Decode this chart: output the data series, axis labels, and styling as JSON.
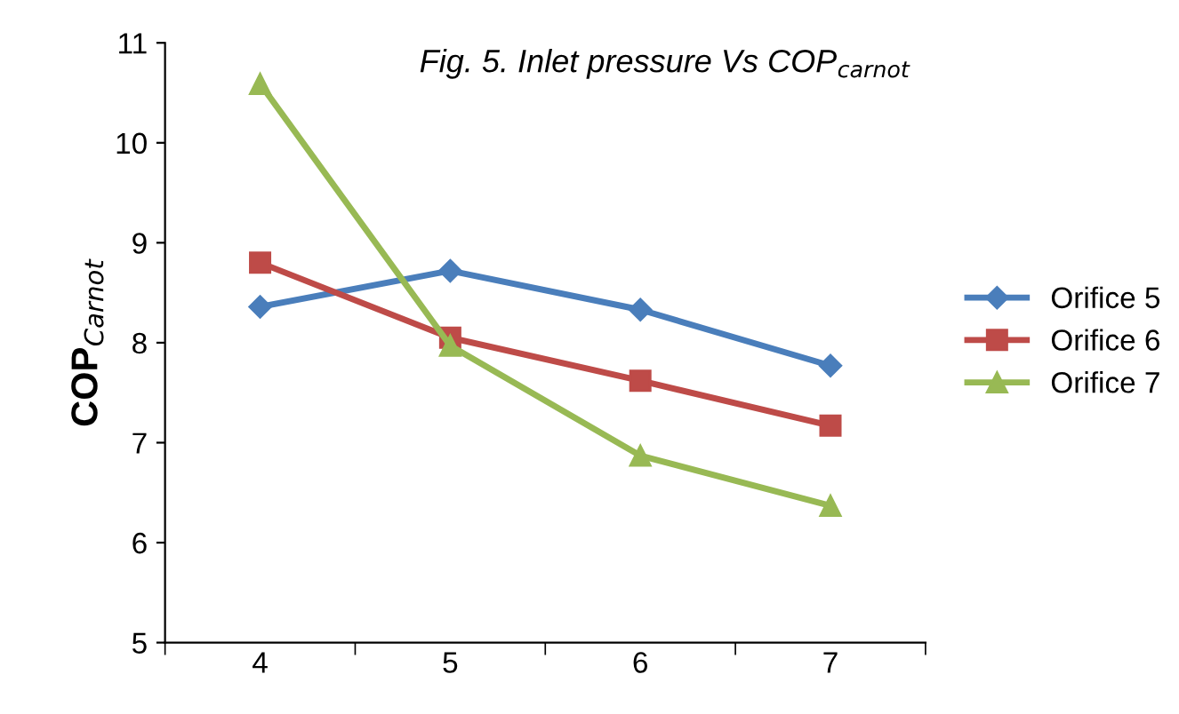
{
  "chart_data": {
    "type": "line",
    "title": "Fig. 5. Inlet pressure Vs COP$_{carnot}$",
    "ylabel": "COP$_{Carnot}$",
    "categories": [
      "4",
      "5",
      "6",
      "7"
    ],
    "series": [
      {
        "name": "Orifice 5",
        "color": "#4a7ebb",
        "marker": "diamond",
        "values": [
          8.36,
          8.72,
          8.33,
          7.77
        ]
      },
      {
        "name": "Orifice 6",
        "color": "#be4b48",
        "marker": "square",
        "values": [
          8.8,
          8.05,
          7.62,
          7.17
        ]
      },
      {
        "name": "Orifice 7",
        "color": "#98b954",
        "marker": "triangle",
        "values": [
          10.59,
          7.97,
          6.87,
          6.37
        ]
      }
    ],
    "ylim": [
      5,
      11
    ],
    "yticks": [
      5,
      6,
      7,
      8,
      9,
      10,
      11
    ],
    "grid": false,
    "legend": "right",
    "line_style": "solid"
  }
}
